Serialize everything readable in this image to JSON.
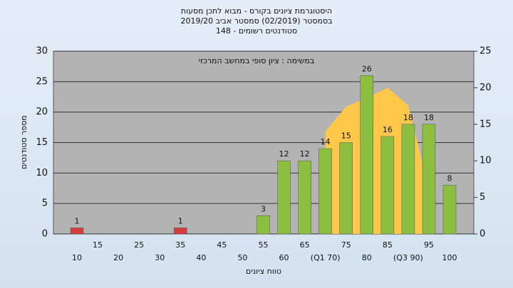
{
  "chart_data": {
    "type": "bar",
    "title": [
      "היסטוגרמת ציונים בקורס - מבוא לתכן מסעות",
      "בסמסטר  (02/2019)  סמסטר אביב 2019/20",
      "סטודנטים רשומים - 148"
    ],
    "annotation": "במשימה : ציון סופי במחשב המרכזי",
    "xlabel": "טווח ציונים",
    "ylabel": "מספר סטודנטים",
    "categories": [
      "10",
      "15",
      "20",
      "25",
      "30",
      "35",
      "40",
      "45",
      "50",
      "55",
      "60",
      "65",
      "(Q1 70)",
      "75",
      "80",
      "85",
      "(Q3 90)",
      "95",
      "100"
    ],
    "values": [
      1,
      0,
      0,
      0,
      0,
      1,
      0,
      0,
      0,
      3,
      12,
      12,
      14,
      15,
      26,
      16,
      18,
      18,
      8
    ],
    "colors": [
      "#d63c3c",
      "#d63c3c",
      "#d63c3c",
      "#d63c3c",
      "#d63c3c",
      "#d63c3c",
      "#d63c3c",
      "#d63c3c",
      "#d63c3c",
      "#8cbf3f",
      "#8cbf3f",
      "#8cbf3f",
      "#8cbf3f",
      "#8cbf3f",
      "#8cbf3f",
      "#8cbf3f",
      "#8cbf3f",
      "#8cbf3f",
      "#8cbf3f"
    ],
    "curve": {
      "color": "#ffc84a",
      "axis": "y2",
      "values": [
        null,
        null,
        null,
        null,
        null,
        null,
        null,
        null,
        null,
        null,
        null,
        null,
        14,
        17.4,
        18.6,
        20,
        17.6,
        6.2,
        null
      ]
    },
    "ylim": [
      0,
      30
    ],
    "yticks": [
      0,
      5,
      10,
      15,
      20,
      25,
      30
    ],
    "y2lim": [
      0,
      25
    ],
    "y2ticks": [
      0,
      5,
      10,
      15,
      20,
      25
    ],
    "grid": true
  }
}
